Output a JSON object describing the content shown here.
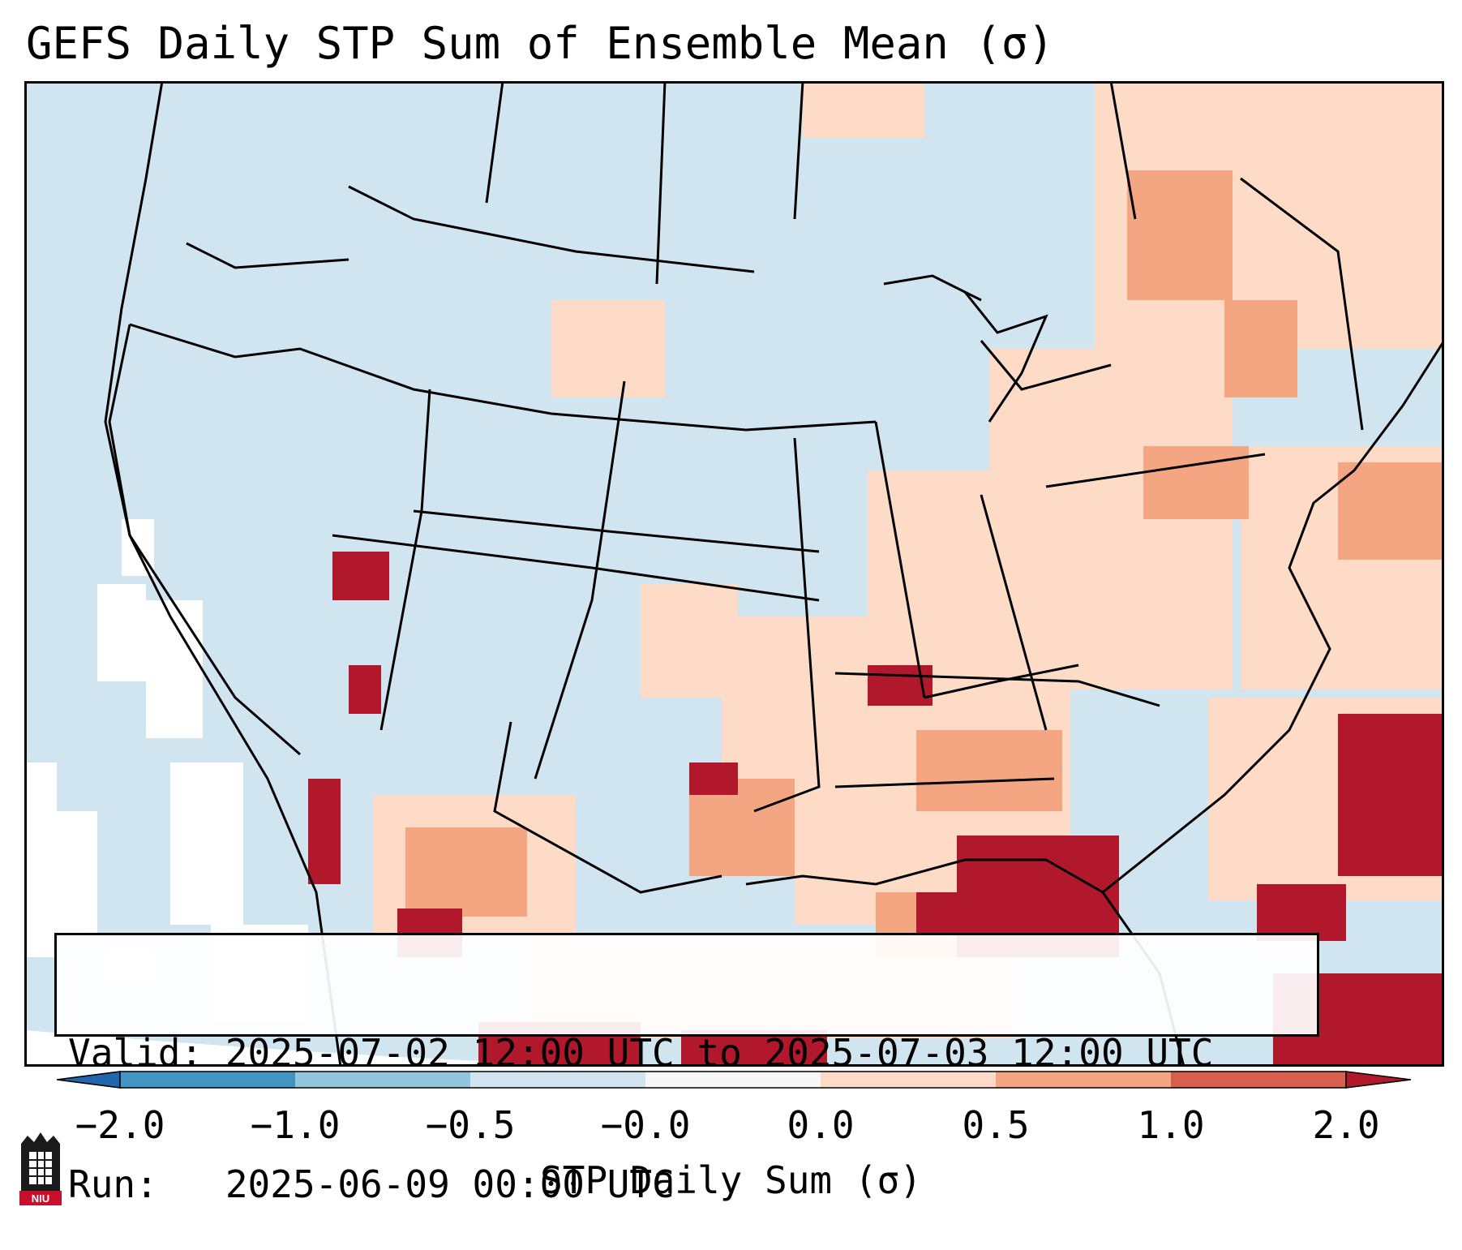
{
  "title": "GEFS Daily STP Sum of Ensemble Mean (σ)",
  "info": {
    "valid_line": "Valid: 2025-07-02 12:00 UTC to 2025-07-03 12:00 UTC",
    "run_line": "Run:   2025-06-09 00:00 UTC"
  },
  "colorbar": {
    "label": "STP Daily Sum (σ)",
    "ticks": [
      "−2.0",
      "−1.0",
      "−0.5",
      "−0.0",
      "0.0",
      "0.5",
      "1.0",
      "2.0"
    ],
    "colors": [
      "#2166ac",
      "#4393c3",
      "#92c5de",
      "#d1e5f0",
      "#f7f7f7",
      "#fddbc7",
      "#f4a582",
      "#d6604d",
      "#b2182b"
    ]
  },
  "logo": {
    "text": "NIU"
  },
  "icons": {
    "logo": "niu-logo-icon"
  }
}
